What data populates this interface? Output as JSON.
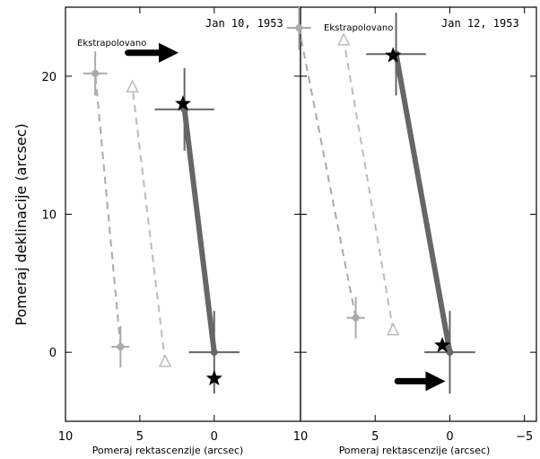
{
  "chart_data": [
    {
      "type": "scatter",
      "date": "Jan 10, 1953",
      "annotation": "Ekstrapolovano",
      "xlabel": "Pomeraj rektascenzije (arcsec)",
      "ylabel": "Pomeraj deklinacije (arcsec)",
      "xlim": [
        10,
        -5.8
      ],
      "ylim": [
        -5,
        25
      ],
      "x_ticks": [
        "10",
        "5",
        "0"
      ],
      "y_ticks": [
        "0",
        "10",
        "20"
      ],
      "series": [
        {
          "style": "solid-dark",
          "points": [
            {
              "x": 0,
              "y": 0
            },
            {
              "x": 2,
              "y": 17.6
            }
          ],
          "errors": [
            [
              1.7,
              3
            ],
            [
              2,
              3
            ]
          ]
        },
        {
          "style": "dashed-light-circle",
          "points": [
            {
              "x": 6.3,
              "y": 0.4
            },
            {
              "x": 8,
              "y": 20.2
            }
          ],
          "errors": [
            [
              0.6,
              1.5
            ],
            [
              0.8,
              1.6
            ]
          ]
        },
        {
          "style": "dashed-light-triangle",
          "points": [
            {
              "x": 3.3,
              "y": -0.7
            },
            {
              "x": 5.5,
              "y": 19.2
            }
          ],
          "errors": [
            [
              0,
              0
            ],
            [
              0,
              0
            ]
          ]
        },
        {
          "style": "stars",
          "points": [
            {
              "x": 2.1,
              "y": 18
            },
            {
              "x": 0,
              "y": -1.9
            }
          ]
        }
      ],
      "arrow": {
        "x_from": 5.8,
        "x_to": 2.4,
        "y": 21.7
      }
    },
    {
      "type": "scatter",
      "date": "Jan 12, 1953",
      "annotation": "Ekstrapolovano",
      "xlabel": "Pomeraj rektascenzije (arcsec)",
      "xlim": [
        10,
        -5.8
      ],
      "ylim": [
        -5,
        25
      ],
      "x_ticks": [
        "10",
        "5",
        "0",
        "−5"
      ],
      "series": [
        {
          "style": "solid-dark",
          "points": [
            {
              "x": 0,
              "y": 0
            },
            {
              "x": 3.6,
              "y": 21.6
            }
          ],
          "errors": [
            [
              1.7,
              3
            ],
            [
              2,
              3
            ]
          ]
        },
        {
          "style": "dashed-light-circle",
          "points": [
            {
              "x": 6.3,
              "y": 2.5
            },
            {
              "x": 10.1,
              "y": 23.5
            }
          ],
          "errors": [
            [
              0.6,
              1.5
            ],
            [
              0.8,
              1.6
            ]
          ]
        },
        {
          "style": "dashed-light-triangle",
          "points": [
            {
              "x": 3.8,
              "y": 1.6
            },
            {
              "x": 7.1,
              "y": 22.6
            }
          ],
          "errors": [
            [
              0,
              0
            ],
            [
              0,
              0
            ]
          ]
        },
        {
          "style": "stars",
          "points": [
            {
              "x": 3.8,
              "y": 21.5
            },
            {
              "x": 0.5,
              "y": 0.5
            }
          ]
        }
      ],
      "arrow": {
        "x_from": 3.5,
        "x_to": 0.3,
        "y": -2.1
      }
    }
  ]
}
